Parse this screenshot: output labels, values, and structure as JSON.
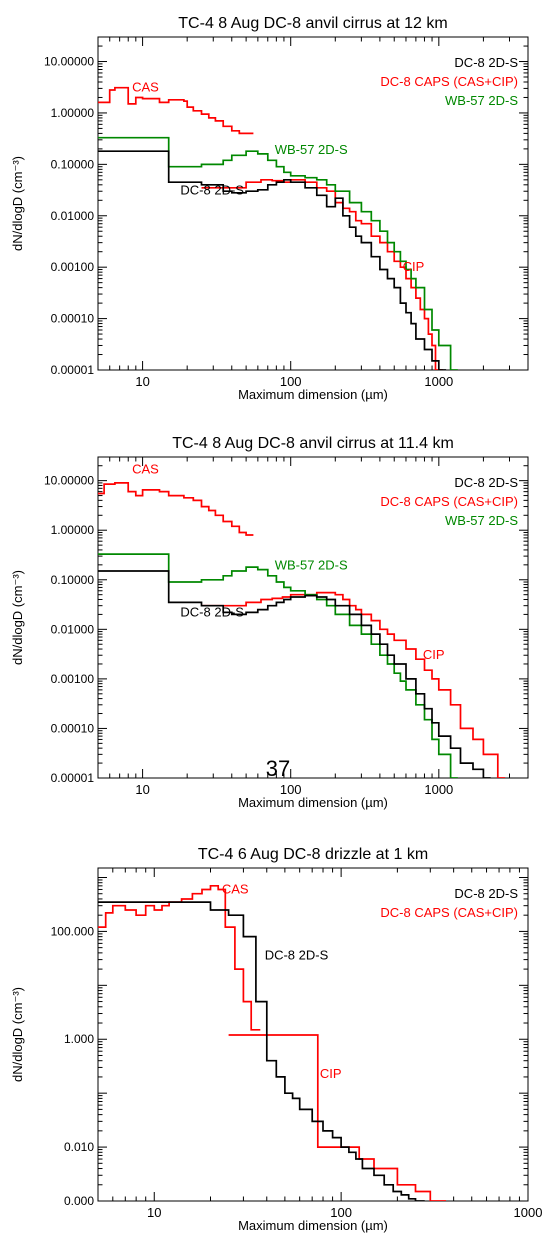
{
  "page_number": "37",
  "chart_data": [
    {
      "type": "line",
      "title": "TC-4    8 Aug  DC-8    anvil cirrus at 12 km",
      "xlabel": "Maximum dimension (µm)",
      "ylabel": "dN/dlogD (cm⁻³)",
      "xscale": "log",
      "yscale": "log",
      "xlim": [
        5,
        4000
      ],
      "ylim": [
        1e-05,
        30
      ],
      "x_ticks": [
        10,
        100,
        1000
      ],
      "x_tick_labels": [
        "10",
        "100",
        "1000"
      ],
      "y_ticks": [
        1e-05,
        0.0001,
        0.001,
        0.01,
        0.1,
        1,
        10
      ],
      "y_tick_labels": [
        "0.00001",
        "0.00010",
        "0.00100",
        "0.01000",
        "0.10000",
        "1.00000",
        "10.00000"
      ],
      "legend": [
        {
          "label": "DC-8 2D-S",
          "color": "#000000"
        },
        {
          "label": "DC-8 CAPS (CAS+CIP)",
          "color": "#ff0000"
        },
        {
          "label": "WB-57 2D-S",
          "color": "#008800"
        }
      ],
      "legend_position": "top-right",
      "annotations": [
        {
          "text": "CAS",
          "color": "#ff0000",
          "at": [
            8.5,
            2.6
          ]
        },
        {
          "text": "WB-57 2D-S",
          "color": "#008800",
          "at": [
            78,
            0.16
          ]
        },
        {
          "text": "DC-8 2D-S",
          "color": "#000000",
          "at": [
            18,
            0.026
          ]
        },
        {
          "text": "CIP",
          "color": "#ff0000",
          "at": [
            570,
            0.00085
          ]
        }
      ],
      "series": [
        {
          "name": "DC-8 CAS",
          "color": "#ff0000",
          "x": [
            5,
            6,
            6.5,
            7.5,
            8,
            9,
            10,
            13,
            15,
            19,
            20,
            22,
            25,
            28,
            31,
            35,
            40,
            45,
            50
          ],
          "y": [
            1.6,
            2.8,
            3.1,
            3.1,
            1.5,
            2.0,
            1.9,
            1.6,
            1.8,
            1.7,
            1.3,
            1.1,
            0.95,
            0.8,
            0.7,
            0.55,
            0.45,
            0.4,
            0.4
          ]
        },
        {
          "name": "DC-8 CIP",
          "color": "#ff0000",
          "x": [
            25,
            37,
            50,
            63,
            75,
            88,
            100,
            125,
            150,
            175,
            200,
            225,
            250,
            275,
            300,
            350,
            400,
            450,
            500,
            550,
            600,
            650,
            700,
            750,
            800,
            850,
            900,
            950
          ],
          "y": [
            0.035,
            0.035,
            0.045,
            0.05,
            0.048,
            0.045,
            0.05,
            0.045,
            0.035,
            0.03,
            0.018,
            0.014,
            0.012,
            0.008,
            0.007,
            0.004,
            0.003,
            0.002,
            0.0013,
            0.001,
            0.0006,
            0.0004,
            0.00025,
            0.00015,
            0.0001,
            5e-05,
            3e-05,
            1e-05
          ]
        },
        {
          "name": "WB-57 2D-S",
          "color": "#008800",
          "x": [
            5,
            15,
            25,
            35,
            40,
            50,
            60,
            70,
            80,
            90,
            100,
            125,
            150,
            175,
            200,
            250,
            300,
            350,
            400,
            450,
            500,
            550,
            600,
            650,
            700,
            800,
            900,
            1000,
            1200
          ],
          "y": [
            0.33,
            0.09,
            0.1,
            0.12,
            0.15,
            0.18,
            0.16,
            0.12,
            0.09,
            0.07,
            0.06,
            0.055,
            0.05,
            0.04,
            0.03,
            0.018,
            0.012,
            0.008,
            0.005,
            0.003,
            0.002,
            0.0013,
            0.0009,
            0.0006,
            0.0004,
            0.00015,
            6e-05,
            3e-05,
            1e-05
          ]
        },
        {
          "name": "DC-8 2D-S",
          "color": "#000000",
          "x": [
            5,
            15,
            25,
            35,
            40,
            50,
            60,
            70,
            80,
            90,
            100,
            125,
            150,
            175,
            200,
            225,
            250,
            275,
            300,
            350,
            400,
            450,
            500,
            550,
            600,
            650,
            700,
            800,
            900,
            1000
          ],
          "y": [
            0.18,
            0.045,
            0.04,
            0.03,
            0.028,
            0.03,
            0.032,
            0.04,
            0.045,
            0.05,
            0.045,
            0.035,
            0.025,
            0.015,
            0.022,
            0.01,
            0.006,
            0.004,
            0.003,
            0.0016,
            0.0009,
            0.0006,
            0.0004,
            0.0002,
            0.00013,
            8e-05,
            4e-05,
            2.5e-05,
            1.5e-05,
            1e-05
          ]
        }
      ]
    },
    {
      "type": "line",
      "title": "TC-4    8 Aug  DC-8    anvil cirrus at 11.4 km",
      "xlabel": "Maximum dimension (µm)",
      "ylabel": "dN/dlogD (cm⁻³)",
      "xscale": "log",
      "yscale": "log",
      "xlim": [
        5,
        4000
      ],
      "ylim": [
        1e-05,
        30
      ],
      "x_ticks": [
        10,
        100,
        1000
      ],
      "x_tick_labels": [
        "10",
        "100",
        "1000"
      ],
      "y_ticks": [
        1e-05,
        0.0001,
        0.001,
        0.01,
        0.1,
        1,
        10
      ],
      "y_tick_labels": [
        "0.00001",
        "0.00010",
        "0.00100",
        "0.01000",
        "0.10000",
        "1.00000",
        "10.00000"
      ],
      "legend": [
        {
          "label": "DC-8 2D-S",
          "color": "#000000"
        },
        {
          "label": "DC-8 CAPS (CAS+CIP)",
          "color": "#ff0000"
        },
        {
          "label": "WB-57 2D-S",
          "color": "#008800"
        }
      ],
      "legend_position": "top-right",
      "annotations": [
        {
          "text": "CAS",
          "color": "#ff0000",
          "at": [
            8.5,
            14
          ]
        },
        {
          "text": "WB-57 2D-S",
          "color": "#008800",
          "at": [
            78,
            0.16
          ]
        },
        {
          "text": "DC-8 2D-S",
          "color": "#000000",
          "at": [
            18,
            0.018
          ]
        },
        {
          "text": "CIP",
          "color": "#ff0000",
          "at": [
            780,
            0.0025
          ]
        }
      ],
      "series": [
        {
          "name": "DC-8 CAS",
          "color": "#ff0000",
          "x": [
            5,
            5.5,
            6.5,
            8,
            9,
            10,
            13,
            15,
            19,
            22,
            25,
            28,
            31,
            35,
            40,
            45,
            50
          ],
          "y": [
            5.5,
            8.5,
            9.0,
            6.0,
            5.0,
            6.5,
            6.0,
            5.0,
            4.5,
            4.0,
            3.0,
            2.5,
            2.0,
            1.5,
            1.2,
            0.9,
            0.8
          ]
        },
        {
          "name": "DC-8 CIP",
          "color": "#ff0000",
          "x": [
            25,
            37,
            50,
            63,
            75,
            88,
            100,
            125,
            150,
            175,
            200,
            225,
            250,
            275,
            300,
            350,
            400,
            450,
            500,
            600,
            700,
            800,
            900,
            1000,
            1200,
            1400,
            1700,
            2000,
            2500
          ],
          "y": [
            0.03,
            0.03,
            0.035,
            0.04,
            0.042,
            0.045,
            0.05,
            0.05,
            0.055,
            0.055,
            0.05,
            0.04,
            0.03,
            0.025,
            0.02,
            0.015,
            0.01,
            0.008,
            0.006,
            0.004,
            0.0025,
            0.0015,
            0.001,
            0.0006,
            0.0003,
            0.0001,
            6e-05,
            3e-05,
            1e-05
          ]
        },
        {
          "name": "WB-57 2D-S",
          "color": "#008800",
          "x": [
            5,
            15,
            25,
            35,
            40,
            50,
            60,
            70,
            80,
            90,
            100,
            125,
            150,
            175,
            200,
            250,
            300,
            350,
            400,
            450,
            500,
            550,
            600,
            700,
            800,
            900,
            1000,
            1200
          ],
          "y": [
            0.33,
            0.09,
            0.1,
            0.12,
            0.15,
            0.18,
            0.16,
            0.12,
            0.09,
            0.07,
            0.06,
            0.05,
            0.04,
            0.03,
            0.02,
            0.012,
            0.008,
            0.005,
            0.003,
            0.002,
            0.0013,
            0.0009,
            0.0006,
            0.0003,
            0.00015,
            6e-05,
            3e-05,
            1e-05
          ]
        },
        {
          "name": "DC-8 2D-S",
          "color": "#000000",
          "x": [
            5,
            15,
            25,
            35,
            40,
            50,
            60,
            70,
            80,
            90,
            100,
            125,
            150,
            175,
            200,
            250,
            300,
            350,
            400,
            450,
            500,
            600,
            700,
            800,
            900,
            1000,
            1200,
            1400,
            1700,
            2000
          ],
          "y": [
            0.15,
            0.035,
            0.03,
            0.022,
            0.02,
            0.022,
            0.025,
            0.03,
            0.035,
            0.04,
            0.045,
            0.048,
            0.045,
            0.04,
            0.03,
            0.02,
            0.012,
            0.008,
            0.005,
            0.003,
            0.002,
            0.001,
            0.0005,
            0.00025,
            0.00013,
            7e-05,
            4e-05,
            2e-05,
            1.5e-05,
            1e-05
          ]
        }
      ]
    },
    {
      "type": "line",
      "title": "TC-4    6 Aug  DC-8    drizzle at 1 km",
      "xlabel": "Maximum dimension (µm)",
      "ylabel": "dN/dlogD (cm⁻³)",
      "xscale": "log",
      "yscale": "log",
      "xlim": [
        5,
        1000
      ],
      "ylim": [
        0.001,
        1500
      ],
      "x_ticks": [
        10,
        100,
        1000
      ],
      "x_tick_labels": [
        "10",
        "100",
        "1000"
      ],
      "y_ticks": [
        0.001,
        0.01,
        1,
        100
      ],
      "y_tick_labels": [
        "0.000",
        "0.010",
        "1.000",
        "100.000"
      ],
      "legend": [
        {
          "label": "DC-8 2D-S",
          "color": "#000000"
        },
        {
          "label": "DC-8 CAPS (CAS+CIP)",
          "color": "#ff0000"
        }
      ],
      "legend_position": "top-right",
      "annotations": [
        {
          "text": "CAS",
          "color": "#ff0000",
          "at": [
            23,
            500
          ]
        },
        {
          "text": "DC-8 2D-S",
          "color": "#000000",
          "at": [
            39,
            30
          ]
        },
        {
          "text": "CIP",
          "color": "#ff0000",
          "at": [
            77,
            0.19
          ]
        }
      ],
      "series": [
        {
          "name": "DC-8 CAS",
          "color": "#ff0000",
          "x": [
            5,
            5.5,
            6,
            7,
            8,
            9,
            10,
            11,
            12,
            14,
            16,
            18,
            20,
            22,
            24,
            27,
            30,
            33
          ],
          "y": [
            120,
            220,
            300,
            250,
            200,
            300,
            250,
            300,
            350,
            400,
            500,
            600,
            700,
            600,
            120,
            20,
            5,
            1.5
          ]
        },
        {
          "name": "DC-8 CIP",
          "color": "#ff0000",
          "x": [
            25,
            37,
            50,
            75,
            100,
            125,
            150,
            175,
            200,
            225,
            250,
            275,
            300,
            325
          ],
          "y": [
            1.2,
            1.2,
            1.2,
            0.01,
            0.01,
            0.006,
            0.004,
            0.004,
            0.002,
            0.002,
            0.0015,
            0.0015,
            0.001,
            0.001
          ]
        },
        {
          "name": "DC-8 2D-S",
          "color": "#000000",
          "x": [
            5,
            15,
            20,
            25,
            30,
            35,
            40,
            45,
            50,
            55,
            60,
            70,
            80,
            90,
            100,
            110,
            120,
            130,
            150,
            170,
            190,
            210,
            230,
            250
          ],
          "y": [
            350,
            350,
            250,
            200,
            80,
            5,
            0.4,
            0.2,
            0.1,
            0.08,
            0.05,
            0.03,
            0.02,
            0.015,
            0.01,
            0.008,
            0.006,
            0.004,
            0.003,
            0.002,
            0.0015,
            0.0013,
            0.0011,
            0.001
          ]
        }
      ]
    }
  ]
}
